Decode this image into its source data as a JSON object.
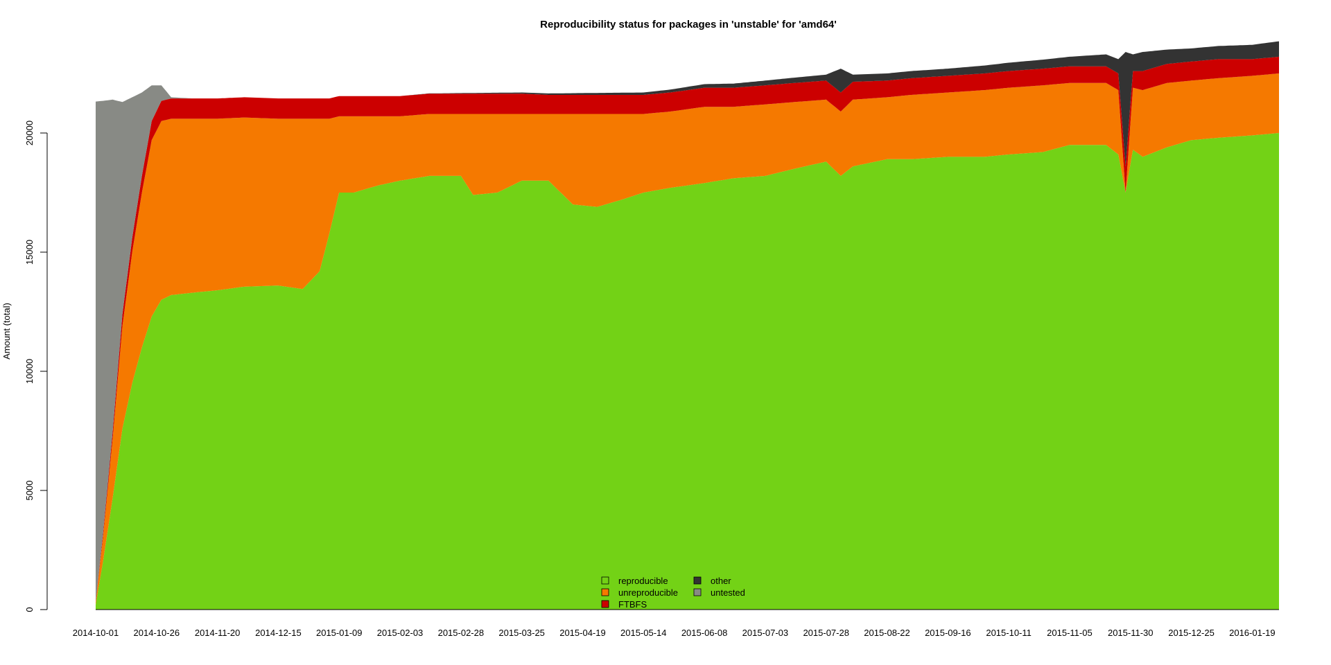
{
  "chart_data": {
    "type": "area",
    "stacked": true,
    "title": "Reproducibility status for packages in 'unstable' for 'amd64'",
    "xlabel": "",
    "ylabel": "Amount (total)",
    "ylim": [
      0,
      24000
    ],
    "y_ticks": [
      0,
      5000,
      10000,
      15000,
      20000
    ],
    "x_range": [
      "2014-10-01",
      "2016-01-30"
    ],
    "x_ticks": [
      "2014-10-01",
      "2014-10-26",
      "2014-11-20",
      "2014-12-15",
      "2015-01-09",
      "2015-02-03",
      "2015-02-28",
      "2015-03-25",
      "2015-04-19",
      "2015-05-14",
      "2015-06-08",
      "2015-07-03",
      "2015-07-28",
      "2015-08-22",
      "2015-09-16",
      "2015-10-11",
      "2015-11-05",
      "2015-11-30",
      "2015-12-25",
      "2016-01-19"
    ],
    "grid": false,
    "legend_position": "bottom-center",
    "series": [
      {
        "name": "reproducible",
        "color": "#73d216",
        "x": [
          "2014-10-01",
          "2014-10-04",
          "2014-10-08",
          "2014-10-12",
          "2014-10-16",
          "2014-10-20",
          "2014-10-24",
          "2014-10-28",
          "2014-11-01",
          "2014-11-10",
          "2014-11-20",
          "2014-12-01",
          "2014-12-15",
          "2014-12-25",
          "2015-01-01",
          "2015-01-05",
          "2015-01-09",
          "2015-01-15",
          "2015-01-25",
          "2015-02-03",
          "2015-02-15",
          "2015-02-28",
          "2015-03-05",
          "2015-03-15",
          "2015-03-25",
          "2015-04-05",
          "2015-04-15",
          "2015-04-25",
          "2015-05-05",
          "2015-05-14",
          "2015-05-25",
          "2015-06-08",
          "2015-06-20",
          "2015-07-03",
          "2015-07-15",
          "2015-07-28",
          "2015-08-03",
          "2015-08-08",
          "2015-08-22",
          "2015-09-01",
          "2015-09-16",
          "2015-10-01",
          "2015-10-11",
          "2015-10-25",
          "2015-11-05",
          "2015-11-20",
          "2015-11-25",
          "2015-11-28",
          "2015-12-01",
          "2015-12-05",
          "2015-12-15",
          "2015-12-25",
          "2016-01-05",
          "2016-01-19",
          "2016-01-30"
        ],
        "values": [
          200,
          2000,
          4700,
          7600,
          9500,
          11000,
          12300,
          13000,
          13200,
          13300,
          13400,
          13550,
          13600,
          13450,
          14200,
          15800,
          17500,
          17500,
          17800,
          18000,
          18200,
          18200,
          17400,
          17500,
          18000,
          18000,
          17000,
          16900,
          17200,
          17500,
          17700,
          17900,
          18100,
          18200,
          18500,
          18800,
          18200,
          18600,
          18900,
          18900,
          19000,
          19000,
          19100,
          19200,
          19500,
          19500,
          19100,
          17500,
          19300,
          19000,
          19400,
          19700,
          19800,
          19900,
          20000
        ]
      },
      {
        "name": "unreproducible",
        "color": "#f57900",
        "x": [
          "2014-10-01",
          "2014-10-04",
          "2014-10-08",
          "2014-10-12",
          "2014-10-16",
          "2014-10-20",
          "2014-10-24",
          "2014-10-28",
          "2014-11-01",
          "2014-11-10",
          "2014-11-20",
          "2014-12-01",
          "2014-12-15",
          "2014-12-25",
          "2015-01-01",
          "2015-01-05",
          "2015-01-09",
          "2015-01-15",
          "2015-01-25",
          "2015-02-03",
          "2015-02-15",
          "2015-02-28",
          "2015-03-05",
          "2015-03-15",
          "2015-03-25",
          "2015-04-05",
          "2015-04-15",
          "2015-04-25",
          "2015-05-05",
          "2015-05-14",
          "2015-05-25",
          "2015-06-08",
          "2015-06-20",
          "2015-07-03",
          "2015-07-15",
          "2015-07-28",
          "2015-08-03",
          "2015-08-08",
          "2015-08-22",
          "2015-09-01",
          "2015-09-16",
          "2015-10-01",
          "2015-10-11",
          "2015-10-25",
          "2015-11-05",
          "2015-11-20",
          "2015-11-25",
          "2015-11-28",
          "2015-12-01",
          "2015-12-05",
          "2015-12-15",
          "2015-12-25",
          "2016-01-05",
          "2016-01-19",
          "2016-01-30"
        ],
        "values": [
          100,
          1000,
          2500,
          4300,
          5500,
          6500,
          7400,
          7500,
          7400,
          7300,
          7200,
          7100,
          7000,
          7150,
          6400,
          4800,
          3200,
          3200,
          2900,
          2700,
          2600,
          2600,
          3400,
          3300,
          2800,
          2800,
          3800,
          3900,
          3600,
          3300,
          3200,
          3200,
          3000,
          3000,
          2800,
          2600,
          2700,
          2800,
          2600,
          2700,
          2700,
          2800,
          2800,
          2800,
          2600,
          2600,
          2700,
          0,
          2600,
          2800,
          2700,
          2500,
          2500,
          2500,
          2500
        ]
      },
      {
        "name": "FTBFS",
        "color": "#cc0000",
        "x": [
          "2014-10-01",
          "2014-10-04",
          "2014-10-08",
          "2014-10-12",
          "2014-10-16",
          "2014-10-20",
          "2014-10-24",
          "2014-10-28",
          "2014-11-01",
          "2014-11-10",
          "2014-11-20",
          "2014-12-01",
          "2014-12-15",
          "2014-12-25",
          "2015-01-01",
          "2015-01-05",
          "2015-01-09",
          "2015-01-15",
          "2015-01-25",
          "2015-02-03",
          "2015-02-15",
          "2015-02-28",
          "2015-03-05",
          "2015-03-15",
          "2015-03-25",
          "2015-04-05",
          "2015-04-15",
          "2015-04-25",
          "2015-05-05",
          "2015-05-14",
          "2015-05-25",
          "2015-06-08",
          "2015-06-20",
          "2015-07-03",
          "2015-07-15",
          "2015-07-28",
          "2015-08-03",
          "2015-08-08",
          "2015-08-22",
          "2015-09-01",
          "2015-09-16",
          "2015-10-01",
          "2015-10-11",
          "2015-10-25",
          "2015-11-05",
          "2015-11-20",
          "2015-11-25",
          "2015-11-28",
          "2015-12-01",
          "2015-12-05",
          "2015-12-15",
          "2015-12-25",
          "2016-01-05",
          "2016-01-19",
          "2016-01-30"
        ],
        "values": [
          20,
          150,
          300,
          500,
          600,
          700,
          800,
          850,
          850,
          850,
          850,
          850,
          850,
          850,
          850,
          850,
          850,
          850,
          850,
          850,
          850,
          850,
          850,
          850,
          850,
          800,
          800,
          800,
          800,
          800,
          800,
          800,
          800,
          800,
          800,
          800,
          800,
          750,
          700,
          700,
          700,
          700,
          700,
          700,
          700,
          700,
          700,
          1100,
          700,
          800,
          800,
          800,
          800,
          700,
          700
        ]
      },
      {
        "name": "other",
        "color": "#333333",
        "x": [
          "2014-10-01",
          "2014-10-28",
          "2014-11-10",
          "2015-02-03",
          "2015-05-14",
          "2015-06-08",
          "2015-07-03",
          "2015-07-28",
          "2015-08-03",
          "2015-08-08",
          "2015-08-22",
          "2015-09-16",
          "2015-10-11",
          "2015-11-05",
          "2015-11-20",
          "2015-11-25",
          "2015-11-28",
          "2015-12-01",
          "2015-12-05",
          "2015-12-15",
          "2015-12-25",
          "2016-01-05",
          "2016-01-19",
          "2016-01-30"
        ],
        "values": [
          0,
          0,
          0,
          0,
          100,
          150,
          200,
          250,
          1000,
          300,
          300,
          300,
          350,
          400,
          500,
          600,
          4800,
          700,
          800,
          600,
          550,
          550,
          600,
          650
        ]
      },
      {
        "name": "untested",
        "color": "#888a85",
        "x": [
          "2014-10-01",
          "2014-10-04",
          "2014-10-08",
          "2014-10-12",
          "2014-10-16",
          "2014-10-20",
          "2014-10-24",
          "2014-10-28",
          "2014-11-01",
          "2014-11-10",
          "2014-11-20",
          "2015-01-01",
          "2015-05-14",
          "2015-08-22",
          "2016-01-30"
        ],
        "values": [
          21000,
          18200,
          13900,
          8900,
          5900,
          3500,
          1500,
          650,
          50,
          0,
          0,
          0,
          0,
          0,
          0
        ]
      }
    ],
    "legend": {
      "items": [
        {
          "label": "reproducible",
          "color": "#73d216"
        },
        {
          "label": "unreproducible",
          "color": "#f57900"
        },
        {
          "label": "FTBFS",
          "color": "#cc0000"
        },
        {
          "label": "other",
          "color": "#333333"
        },
        {
          "label": "untested",
          "color": "#888a85"
        }
      ]
    }
  }
}
